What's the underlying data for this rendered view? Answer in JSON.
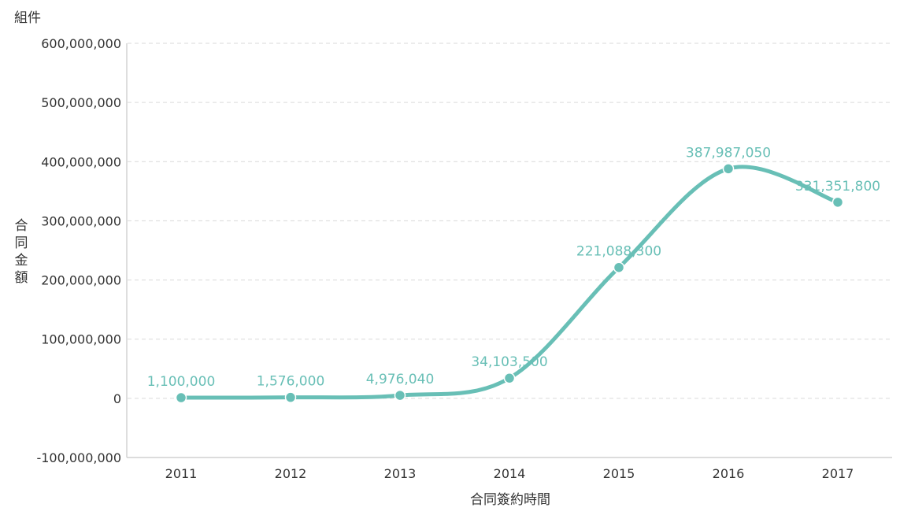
{
  "header": {
    "top_left_label": "組件"
  },
  "chart_data": {
    "type": "line",
    "title": "",
    "xlabel": "合同簽約時間",
    "ylabel": "合同金額",
    "categories": [
      "2011",
      "2012",
      "2013",
      "2014",
      "2015",
      "2016",
      "2017"
    ],
    "series": [
      {
        "values": [
          1100000,
          1576000,
          4976040,
          34103500,
          221088300,
          387987050,
          331351800
        ],
        "labels": [
          "1,100,000",
          "1,576,000",
          "4,976,040",
          "34,103,500",
          "221,088,300",
          "387,987,050",
          "331,351,800"
        ]
      }
    ],
    "ylim": [
      -100000000,
      600000000
    ],
    "yticks": [
      -100000000,
      0,
      100000000,
      200000000,
      300000000,
      400000000,
      500000000,
      600000000
    ],
    "ytick_labels": [
      "-100,000,000",
      "0",
      "100,000,000",
      "200,000,000",
      "300,000,000",
      "400,000,000",
      "500,000,000",
      "600,000,000"
    ],
    "grid": true,
    "line_style": "smooth",
    "legend": "none",
    "colors": {
      "line": "#68bfb6",
      "grid": "#d9d9d9",
      "axis": "#c8c8c8",
      "text": "#333333"
    }
  }
}
